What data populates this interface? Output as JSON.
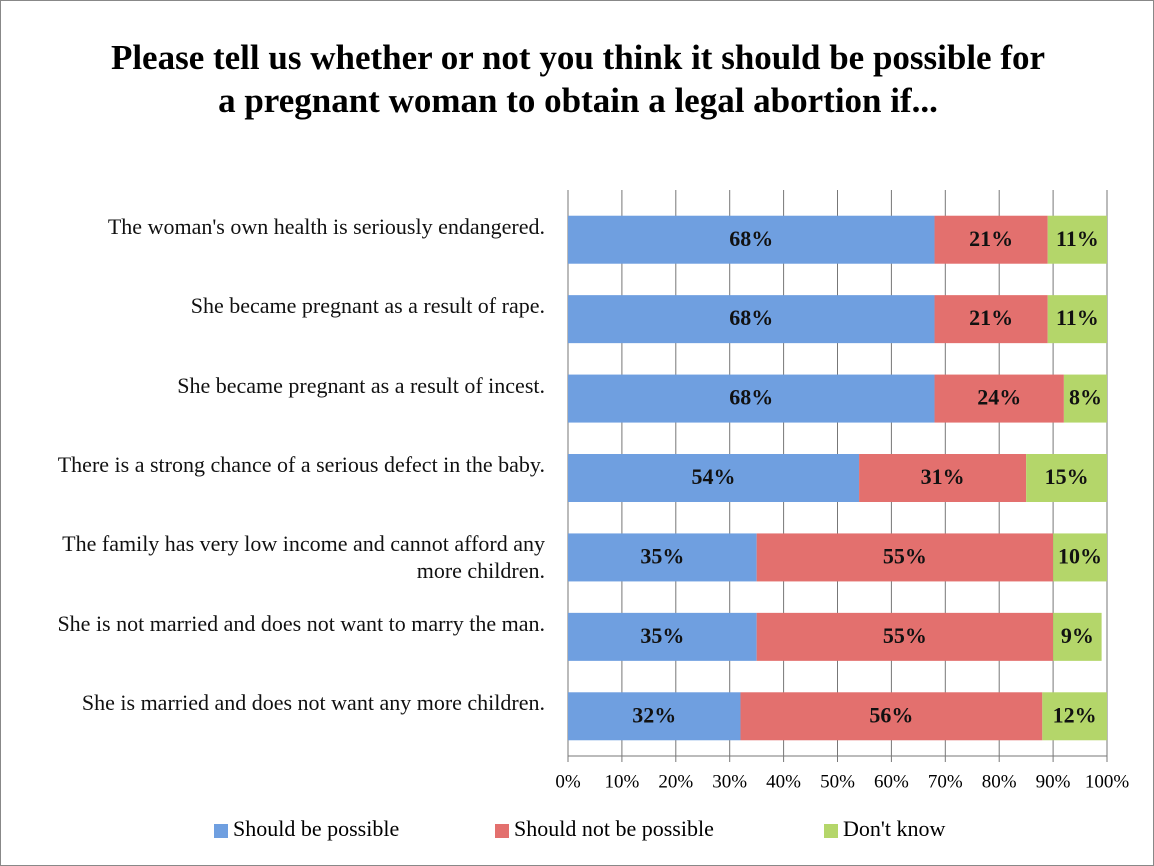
{
  "chart_data": {
    "type": "stacked_bar_horizontal",
    "title": "Please tell us whether or not you think it should be possible for a pregnant woman to obtain a legal abortion if...",
    "categories": [
      "The woman's own health is seriously endangered.",
      "She became pregnant as a result of rape.",
      "She became pregnant as a result of incest.",
      "There is a strong chance of a serious defect in the baby.",
      "The family has very low income and cannot afford any more children.",
      "She is not married and does not want to marry the man.",
      "She is married and does not want any more children."
    ],
    "series": [
      {
        "name": "Should be possible",
        "color": "#6f9fe0",
        "values": [
          68,
          68,
          68,
          54,
          35,
          35,
          32
        ],
        "value_labels": [
          "68%",
          "68%",
          "68%",
          "54%",
          "35%",
          "35%",
          "32%"
        ]
      },
      {
        "name": "Should not be possible",
        "color": "#e3706e",
        "values": [
          21,
          21,
          24,
          31,
          55,
          55,
          56
        ],
        "value_labels": [
          "21%",
          "21%",
          "24%",
          "31%",
          "55%",
          "55%",
          "56%"
        ]
      },
      {
        "name": "Don't know",
        "color": "#b4d66a",
        "values": [
          11,
          11,
          8,
          15,
          10,
          9,
          12
        ],
        "value_labels": [
          "11%",
          "11%",
          "8%",
          "15%",
          "10%",
          "9%",
          "12%"
        ]
      }
    ],
    "xlim": [
      0,
      100
    ],
    "xticks": [
      {
        "value": 0,
        "label": "0%"
      },
      {
        "value": 10,
        "label": "10%"
      },
      {
        "value": 20,
        "label": "20%"
      },
      {
        "value": 30,
        "label": "30%"
      },
      {
        "value": 40,
        "label": "40%"
      },
      {
        "value": 50,
        "label": "50%"
      },
      {
        "value": 60,
        "label": "60%"
      },
      {
        "value": 70,
        "label": "70%"
      },
      {
        "value": 80,
        "label": "80%"
      },
      {
        "value": 90,
        "label": "90%"
      },
      {
        "value": 100,
        "label": "100%"
      }
    ],
    "grid": true,
    "legend": "bottom"
  }
}
